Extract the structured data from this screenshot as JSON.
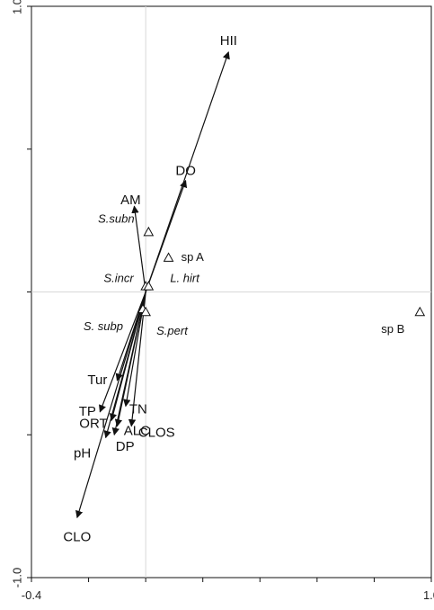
{
  "chart_data": {
    "type": "scatter",
    "subtype": "ordination-biplot",
    "title": "",
    "xlabel": "",
    "ylabel": "",
    "xlim": [
      -0.4,
      1.0
    ],
    "ylim": [
      -1.0,
      1.0
    ],
    "x_tick_labels": [
      {
        "value": -0.4,
        "label": "-0.4"
      },
      {
        "value": 1.0,
        "label": "1.0"
      }
    ],
    "y_tick_labels": [
      {
        "value": 1.0,
        "label": "1.0"
      },
      {
        "value": -1.0,
        "label": "-1.0"
      }
    ],
    "y_minor_ticks": [
      0.5,
      0.0,
      -0.5
    ],
    "x_minor_ticks": [
      -0.2,
      0.0,
      0.2,
      0.4,
      0.6,
      0.8
    ],
    "zero_lines": true,
    "arrow_origin": [
      0.0,
      0.0
    ],
    "environmental_variables": [
      {
        "name": "HII",
        "x": 0.29,
        "y": 0.84
      },
      {
        "name": "DO",
        "x": 0.14,
        "y": 0.39
      },
      {
        "name": "AM",
        "x": -0.04,
        "y": 0.3
      },
      {
        "name": "Tur",
        "x": -0.1,
        "y": -0.31
      },
      {
        "name": "CLOS",
        "x": -0.05,
        "y": -0.47
      },
      {
        "name": "TN",
        "x": -0.07,
        "y": -0.4
      },
      {
        "name": "TP",
        "x": -0.16,
        "y": -0.42
      },
      {
        "name": "ORT",
        "x": -0.12,
        "y": -0.45
      },
      {
        "name": "ALC",
        "x": -0.1,
        "y": -0.47
      },
      {
        "name": "DP",
        "x": -0.11,
        "y": -0.5
      },
      {
        "name": "pH",
        "x": -0.14,
        "y": -0.51
      },
      {
        "name": "CLO",
        "x": -0.24,
        "y": -0.79
      }
    ],
    "species": [
      {
        "name": "S.subn",
        "x": 0.01,
        "y": 0.21,
        "italic": true
      },
      {
        "name": "sp A",
        "x": 0.08,
        "y": 0.12,
        "italic": false
      },
      {
        "name": "S.incr",
        "x": 0.0,
        "y": 0.02,
        "italic": true
      },
      {
        "name": "L. hirt",
        "x": 0.01,
        "y": 0.02,
        "italic": true
      },
      {
        "name": "S. subp",
        "x": -0.01,
        "y": -0.06,
        "italic": true
      },
      {
        "name": "S.pert",
        "x": 0.0,
        "y": -0.07,
        "italic": true
      },
      {
        "name": "sp B",
        "x": 0.96,
        "y": -0.07,
        "italic": false
      }
    ]
  }
}
